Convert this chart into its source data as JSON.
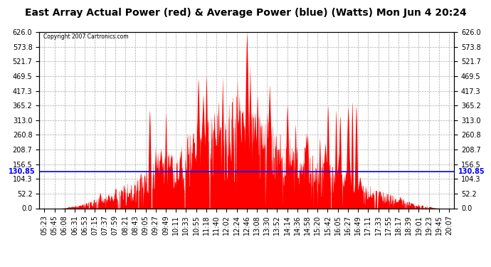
{
  "title": "East Array Actual Power (red) & Average Power (blue) (Watts) Mon Jun 4 20:24",
  "copyright": "Copyright 2007 Cartronics.com",
  "average_power": 130.85,
  "ylim": [
    0,
    626.0
  ],
  "yticks": [
    0.0,
    52.2,
    104.3,
    156.5,
    208.7,
    260.8,
    313.0,
    365.2,
    417.3,
    469.5,
    521.7,
    573.8,
    626.0
  ],
  "x_labels": [
    "05:23",
    "05:45",
    "06:08",
    "06:31",
    "06:53",
    "07:15",
    "07:37",
    "07:59",
    "08:21",
    "08:43",
    "09:05",
    "09:27",
    "09:49",
    "10:11",
    "10:33",
    "10:55",
    "11:18",
    "11:40",
    "12:02",
    "12:24",
    "12:46",
    "13:08",
    "13:30",
    "13:52",
    "14:14",
    "14:36",
    "14:58",
    "15:20",
    "15:42",
    "16:05",
    "16:27",
    "16:49",
    "17:11",
    "17:33",
    "17:55",
    "18:17",
    "18:39",
    "19:01",
    "19:23",
    "19:45",
    "20:07"
  ],
  "background_color": "#ffffff",
  "plot_bg_color": "#ffffff",
  "red_color": "#ff0000",
  "blue_color": "#0000ff",
  "grid_color": "#aaaaaa",
  "title_fontsize": 10,
  "tick_fontsize": 7,
  "figwidth": 6.9,
  "figheight": 3.75,
  "dpi": 100
}
